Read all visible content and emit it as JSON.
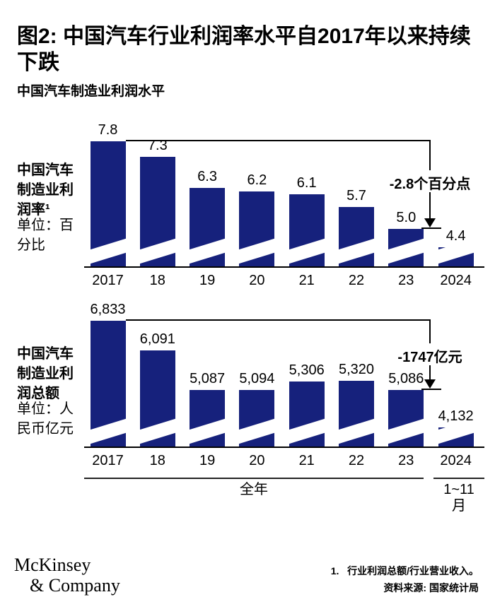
{
  "header": {
    "figure_title": "图2: 中国汽车行业利润率水平自2017年以来持续下跌",
    "subtitle": "中国汽车制造业利润水平"
  },
  "colors": {
    "bar": "#16217C",
    "axis": "#000000",
    "break_mark": "#ffffff"
  },
  "chart_data": [
    {
      "type": "bar",
      "title": "中国汽车制造业利润率¹",
      "unit": "单位：百分比",
      "categories": [
        "2017",
        "18",
        "19",
        "20",
        "21",
        "22",
        "23",
        "2024"
      ],
      "values": [
        7.8,
        7.3,
        6.3,
        6.2,
        6.1,
        5.7,
        5.0,
        4.4
      ],
      "value_labels": [
        "7.8",
        "7.3",
        "6.3",
        "6.2",
        "6.1",
        "5.7",
        "5.0",
        "4.4"
      ],
      "axis_break": true,
      "grid": false,
      "ylim_display": [
        3.8,
        7.8
      ],
      "annotation": {
        "label": "-2.8个百分点",
        "from_category": "2017",
        "to_category": "23"
      }
    },
    {
      "type": "bar",
      "title": "中国汽车制造业利润总额",
      "unit": "单位：人民币亿元",
      "categories": [
        "2017",
        "18",
        "19",
        "20",
        "21",
        "22",
        "23",
        "2024"
      ],
      "values": [
        6833,
        6091,
        5087,
        5094,
        5306,
        5320,
        5086,
        4132
      ],
      "value_labels": [
        "6,833",
        "6,091",
        "5,087",
        "5,094",
        "5,306",
        "5,320",
        "5,086",
        "4,132"
      ],
      "axis_break": true,
      "grid": false,
      "ylim_display": [
        3655,
        6833
      ],
      "annotation": {
        "label": "-1747亿元",
        "from_category": "2017",
        "to_category": "23"
      }
    }
  ],
  "period_axis": {
    "full_year_label": "全年",
    "partial_year_label": "1~11月"
  },
  "footer": {
    "logo_line1": "McKinsey",
    "logo_line2": "& Company",
    "footnote": "1.   行业利润总额/行业营业收入。",
    "source": "资料来源: 国家统计局"
  }
}
